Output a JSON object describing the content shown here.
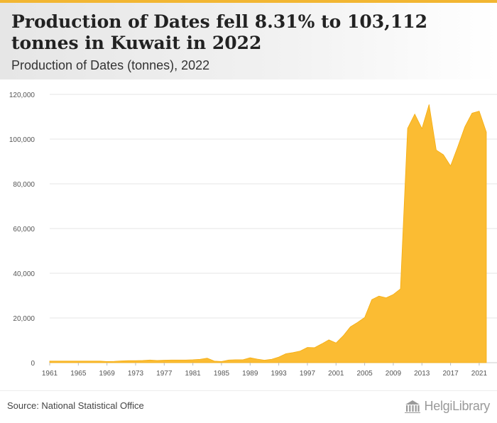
{
  "header": {
    "title": "Production of Dates fell 8.31% to 103,112 tonnes in Kuwait in 2022",
    "subtitle": "Production of Dates (tonnes), 2022"
  },
  "footer": {
    "source": "Source: National Statistical Office",
    "brand": "HelgiLibrary"
  },
  "colors": {
    "area_fill": "#fbbc33",
    "area_stroke": "#f5ad10",
    "accent": "#f2b632",
    "grid": "#e6e6e6"
  },
  "icons": {
    "brand": "library-building-icon"
  },
  "chart_data": {
    "type": "area",
    "title": "Production of Dates fell 8.31% to 103,112 tonnes in Kuwait in 2022",
    "subtitle": "Production of Dates (tonnes), 2022",
    "xlabel": "",
    "ylabel": "",
    "ylim": [
      0,
      120000
    ],
    "xlim": [
      1961,
      2022
    ],
    "grid": true,
    "legend": "none",
    "y_ticks": [
      0,
      20000,
      40000,
      60000,
      80000,
      100000,
      120000
    ],
    "y_tick_labels": [
      "0",
      "20,000",
      "40,000",
      "60,000",
      "80,000",
      "100,000",
      "120,000"
    ],
    "x_ticks": [
      1961,
      1965,
      1969,
      1973,
      1977,
      1981,
      1985,
      1989,
      1993,
      1997,
      2001,
      2005,
      2009,
      2013,
      2017,
      2021
    ],
    "x_tick_labels": [
      "1961",
      "1965",
      "1969",
      "1973",
      "1977",
      "1981",
      "1985",
      "1989",
      "1993",
      "1997",
      "2001",
      "2005",
      "2009",
      "2013",
      "2017",
      "2021"
    ],
    "x": [
      1961,
      1962,
      1963,
      1964,
      1965,
      1966,
      1967,
      1968,
      1969,
      1970,
      1971,
      1972,
      1973,
      1974,
      1975,
      1976,
      1977,
      1978,
      1979,
      1980,
      1981,
      1982,
      1983,
      1984,
      1985,
      1986,
      1987,
      1988,
      1989,
      1990,
      1991,
      1992,
      1993,
      1994,
      1995,
      1996,
      1997,
      1998,
      1999,
      2000,
      2001,
      2002,
      2003,
      2004,
      2005,
      2006,
      2007,
      2008,
      2009,
      2010,
      2011,
      2012,
      2013,
      2014,
      2015,
      2016,
      2017,
      2018,
      2019,
      2020,
      2021,
      2022
    ],
    "series": [
      {
        "values": [
          700,
          700,
          700,
          700,
          700,
          700,
          700,
          700,
          500,
          600,
          800,
          900,
          900,
          1000,
          1200,
          1000,
          1100,
          1200,
          1200,
          1200,
          1300,
          1500,
          2000,
          700,
          500,
          1200,
          1300,
          1300,
          2200,
          1600,
          1100,
          1500,
          2500,
          4000,
          4500,
          5200,
          6800,
          6700,
          8400,
          10200,
          8800,
          12000,
          16000,
          18000,
          20200,
          28200,
          29800,
          29000,
          30500,
          33000,
          104800,
          111200,
          104700,
          115500,
          95100,
          93000,
          88000,
          96500,
          105500,
          111600,
          112500,
          103112
        ]
      }
    ]
  }
}
